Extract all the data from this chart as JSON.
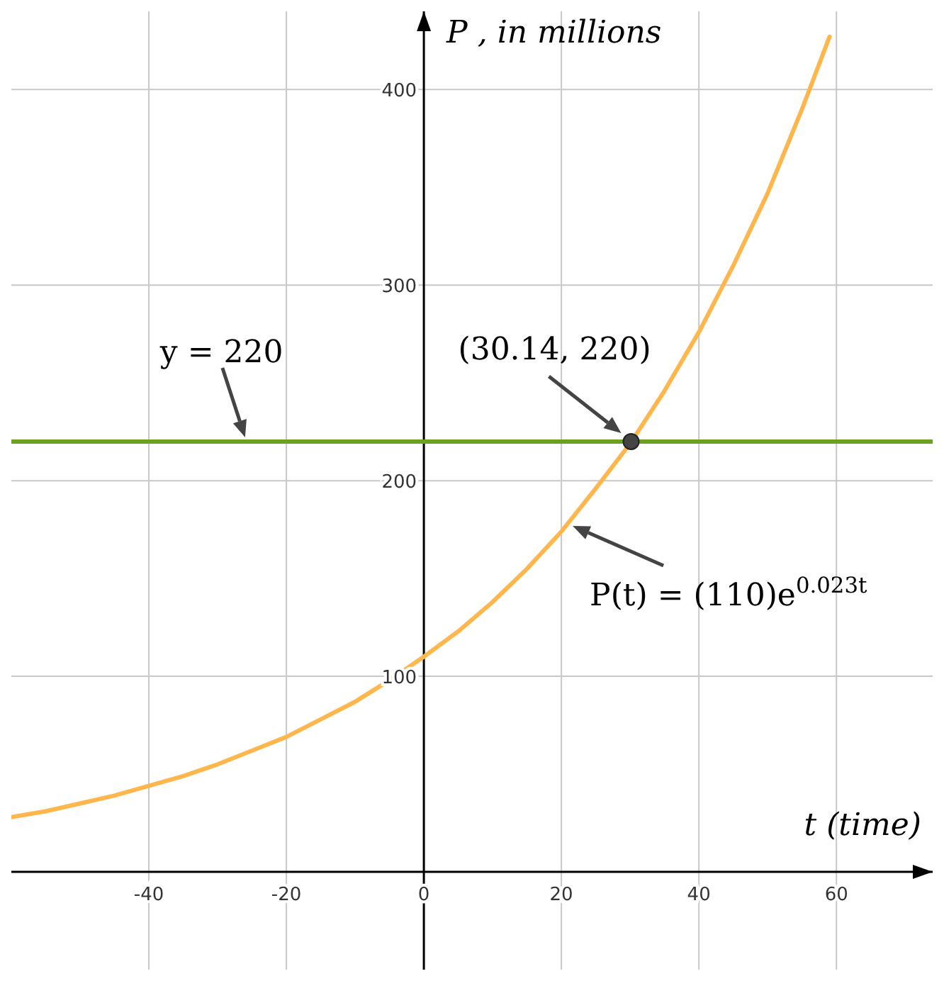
{
  "chart_data": {
    "type": "line",
    "xlabel": "t (time)",
    "ylabel": "P , in millions",
    "xlim": [
      -60,
      74
    ],
    "ylim": [
      -50,
      440
    ],
    "xticks": [
      -40,
      -20,
      0,
      20,
      40,
      60
    ],
    "yticks": [
      100,
      200,
      300,
      400
    ],
    "grid": true,
    "legend": false,
    "series": [
      {
        "type": "line",
        "name": "P(t) = (110)e$^{0.023t}$",
        "color": "#ffb74d",
        "marker": "none",
        "x": [
          -60,
          -55,
          -50,
          -45,
          -40,
          -35,
          -30,
          -25,
          -20,
          -15,
          -10,
          -5,
          0,
          5,
          10,
          15,
          20,
          25,
          30,
          35,
          40,
          45,
          50,
          55,
          59
        ],
        "values": [
          28,
          31,
          35,
          39,
          44,
          49,
          55,
          62,
          69,
          78,
          87,
          98,
          110,
          123,
          138,
          155,
          174,
          196,
          219,
          246,
          276,
          310,
          347,
          390,
          427
        ]
      },
      {
        "type": "scatter",
        "color": "#444444",
        "marker": "circle",
        "x": [
          30.14
        ],
        "values": [
          220
        ]
      }
    ],
    "ref_lines": [
      {
        "axis": "y",
        "value": 220,
        "label": "y = 220",
        "color": "#6aa121"
      }
    ],
    "annotations": [
      {
        "text": "(30.14, 220)",
        "x": 30.14,
        "y": 220
      }
    ]
  }
}
